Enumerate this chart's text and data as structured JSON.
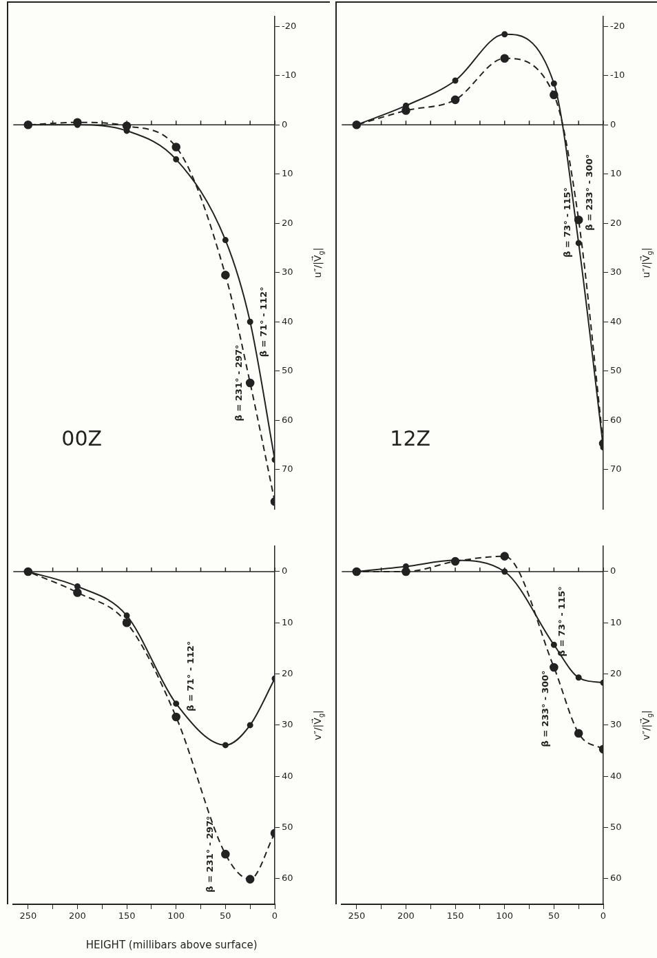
{
  "chart_data": [
    {
      "type": "line",
      "title": "00Z",
      "ylabel": "u″/|V⃗$_{g}$|",
      "xlim": [
        265,
        0
      ],
      "ylim": [
        78,
        -22
      ],
      "xticks": [
        0,
        {
          "value": 25,
          "label": null
        },
        50,
        {
          "value": 75,
          "label": null
        },
        100,
        {
          "value": 125,
          "label": null
        },
        150,
        {
          "value": 175,
          "label": null
        },
        200,
        {
          "value": 225,
          "label": null
        },
        250
      ],
      "yticks": [
        -20,
        -10,
        0,
        10,
        20,
        30,
        40,
        50,
        60,
        70
      ],
      "tick_labels": "y",
      "legend": false,
      "grid": false,
      "marker": "circle",
      "ref_lines": [
        {
          "axis": "y",
          "value": 0
        }
      ],
      "series": [
        {
          "name": "β = 71° - 112°",
          "color": "#222222",
          "line_style": "solid",
          "x": [
            0,
            25,
            50,
            100,
            150,
            200,
            250
          ],
          "values": [
            68,
            40,
            23.4,
            7,
            1.2,
            0,
            0
          ]
        },
        {
          "name": "β = 231° - 297°",
          "color": "#222222",
          "line_style": "dashed",
          "x": [
            0,
            25,
            50,
            100,
            150,
            200,
            250
          ],
          "values": [
            76.5,
            52.4,
            30.5,
            4.5,
            0.2,
            -0.5,
            0
          ]
        }
      ]
    },
    {
      "type": "line",
      "title": "12Z",
      "ylabel": "u″/|V⃗$_{g}$|",
      "xlim": [
        265,
        0
      ],
      "ylim": [
        78,
        -22
      ],
      "xticks": [
        0,
        {
          "value": 25,
          "label": null
        },
        50,
        {
          "value": 75,
          "label": null
        },
        100,
        {
          "value": 125,
          "label": null
        },
        150,
        {
          "value": 175,
          "label": null
        },
        200,
        {
          "value": 225,
          "label": null
        },
        250
      ],
      "yticks": [
        -20,
        -10,
        0,
        10,
        20,
        30,
        40,
        50,
        60,
        70
      ],
      "tick_labels": "y",
      "legend": false,
      "grid": false,
      "marker": "circle",
      "ref_lines": [
        {
          "axis": "y",
          "value": 0
        }
      ],
      "series": [
        {
          "name": "β = 73° - 115°",
          "color": "#222222",
          "line_style": "solid",
          "x": [
            0,
            25,
            50,
            100,
            150,
            200,
            250
          ],
          "values": [
            65.5,
            24,
            -8.4,
            -18.4,
            -9,
            -3.9,
            0
          ]
        },
        {
          "name": "β = 233° - 300°",
          "color": "#222222",
          "line_style": "dashed",
          "x": [
            0,
            25,
            50,
            100,
            150,
            200,
            250
          ],
          "values": [
            64.7,
            19.3,
            -6.1,
            -13.5,
            -5.1,
            -2.9,
            0
          ]
        }
      ]
    },
    {
      "type": "line",
      "xlabel": "HEIGHT (millibars above surface)",
      "ylabel": "v″/|V⃗$_{g}$|",
      "xlim": [
        265,
        0
      ],
      "ylim": [
        65,
        -5
      ],
      "xticks": [
        0,
        {
          "value": 25,
          "label": null
        },
        50,
        {
          "value": 75,
          "label": null
        },
        100,
        {
          "value": 125,
          "label": null
        },
        150,
        {
          "value": 175,
          "label": null
        },
        200,
        {
          "value": 225,
          "label": null
        },
        250
      ],
      "yticks": [
        0,
        10,
        20,
        30,
        40,
        50,
        60
      ],
      "legend": false,
      "grid": false,
      "marker": "circle",
      "ref_lines": [
        {
          "axis": "y",
          "value": 0
        }
      ],
      "series": [
        {
          "name": "β = 71° - 112°",
          "color": "#222222",
          "line_style": "solid",
          "x": [
            0,
            25,
            50,
            100,
            150,
            200,
            250
          ],
          "values": [
            20.9,
            30,
            33.9,
            25.8,
            8.6,
            2.9,
            0
          ]
        },
        {
          "name": "β = 231° - 297°",
          "color": "#222222",
          "line_style": "dashed",
          "x": [
            0,
            25,
            50,
            100,
            150,
            200,
            250
          ],
          "values": [
            51.1,
            60.1,
            55.2,
            28.4,
            10,
            4.1,
            0
          ]
        }
      ]
    },
    {
      "type": "line",
      "ylabel": "v″/|V⃗$_{g}$|",
      "xlim": [
        265,
        0
      ],
      "ylim": [
        65,
        -5
      ],
      "xticks": [
        0,
        {
          "value": 25,
          "label": null
        },
        50,
        {
          "value": 75,
          "label": null
        },
        100,
        {
          "value": 125,
          "label": null
        },
        150,
        {
          "value": 175,
          "label": null
        },
        200,
        {
          "value": 225,
          "label": null
        },
        250
      ],
      "yticks": [
        0,
        10,
        20,
        30,
        40,
        50,
        60
      ],
      "legend": false,
      "grid": false,
      "marker": "circle",
      "ref_lines": [
        {
          "axis": "y",
          "value": 0
        }
      ],
      "series": [
        {
          "name": "β = 73° - 115°",
          "color": "#222222",
          "line_style": "solid",
          "x": [
            0,
            25,
            50,
            100,
            150,
            200,
            250
          ],
          "values": [
            21.7,
            20.7,
            14.3,
            0,
            -2.2,
            -1,
            0
          ]
        },
        {
          "name": "β = 233° - 300°",
          "color": "#222222",
          "line_style": "dashed",
          "x": [
            0,
            25,
            50,
            100,
            150,
            200,
            250
          ],
          "values": [
            34.7,
            31.6,
            18.7,
            -3,
            -2,
            0,
            0
          ]
        }
      ]
    }
  ]
}
